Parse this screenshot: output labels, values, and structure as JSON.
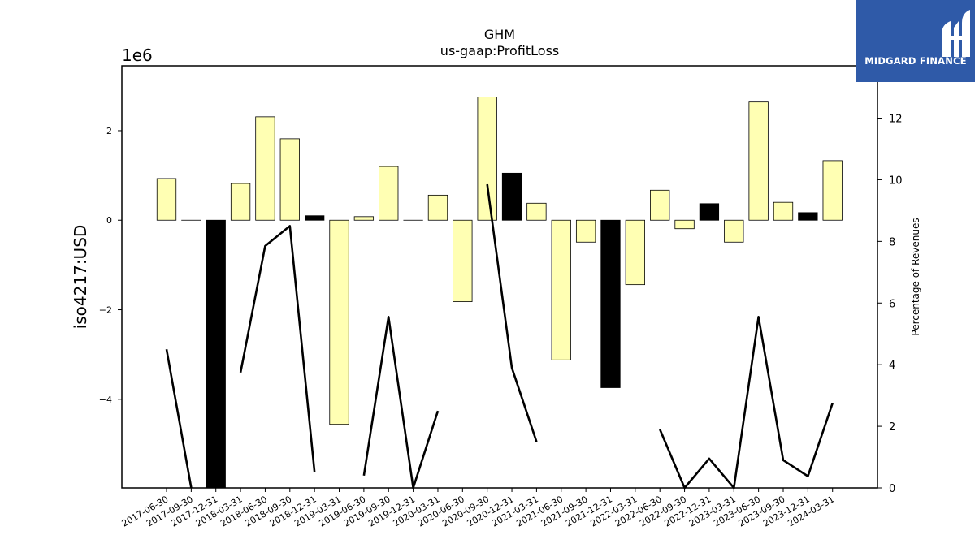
{
  "chart_data": {
    "type": "bar",
    "title": "GHM",
    "subtitle": "us-gaap:ProfitLoss",
    "ylabel": "iso4217:USD",
    "y2label": "Percentage of Revenues",
    "y_multiplier": "1e6",
    "ylim": [
      -5.98,
      3.45
    ],
    "y2lim": [
      0,
      13.7
    ],
    "yticks": [
      {
        "value": 2,
        "label": "2"
      },
      {
        "value": 0,
        "label": "0"
      },
      {
        "value": -2,
        "label": "−2"
      },
      {
        "value": -4,
        "label": "−4"
      }
    ],
    "y2ticks": [
      0,
      2,
      4,
      6,
      8,
      10,
      12
    ],
    "categories": [
      "2017-06-30",
      "2017-09-30",
      "2017-12-31",
      "2018-03-31",
      "2018-06-30",
      "2018-09-30",
      "2018-12-31",
      "2019-03-31",
      "2019-06-30",
      "2019-09-30",
      "2019-12-31",
      "2020-03-31",
      "2020-06-30",
      "2020-09-30",
      "2020-12-31",
      "2021-03-31",
      "2021-06-30",
      "2021-09-30",
      "2021-12-31",
      "2022-03-31",
      "2022-06-30",
      "2022-09-30",
      "2022-12-31",
      "2023-03-31",
      "2023-06-30",
      "2023-09-30",
      "2023-12-31",
      "2024-03-31"
    ],
    "series": [
      {
        "kind": "bar",
        "values": [
          0.93,
          0.0,
          -6.0,
          0.82,
          2.31,
          1.82,
          0.1,
          -4.56,
          0.08,
          1.2,
          0.0,
          0.56,
          -1.82,
          2.75,
          1.05,
          0.38,
          -3.12,
          -0.49,
          -3.74,
          -1.44,
          0.67,
          -0.19,
          0.37,
          -0.49,
          2.64,
          0.4,
          0.17,
          1.33
        ],
        "highlighted": [
          false,
          false,
          true,
          false,
          false,
          false,
          true,
          false,
          false,
          false,
          false,
          false,
          false,
          false,
          true,
          false,
          false,
          false,
          true,
          false,
          false,
          false,
          true,
          false,
          false,
          false,
          true,
          false
        ]
      },
      {
        "kind": "line",
        "axis": "right",
        "values": [
          4.5,
          0.0,
          null,
          3.75,
          7.85,
          8.5,
          0.5,
          null,
          0.4,
          5.55,
          0.0,
          2.5,
          null,
          9.85,
          3.9,
          1.5,
          null,
          null,
          null,
          null,
          1.9,
          0.0,
          0.95,
          0.0,
          5.55,
          0.9,
          0.38,
          2.75
        ]
      }
    ],
    "colors": {
      "bar_fill": "#ffffb3",
      "bar_highlight": "#000000",
      "bar_edge": "#000000",
      "line": "#000000"
    }
  },
  "logo": {
    "text": "MIDGARD FINANCE",
    "background": "#2f5aa8"
  }
}
